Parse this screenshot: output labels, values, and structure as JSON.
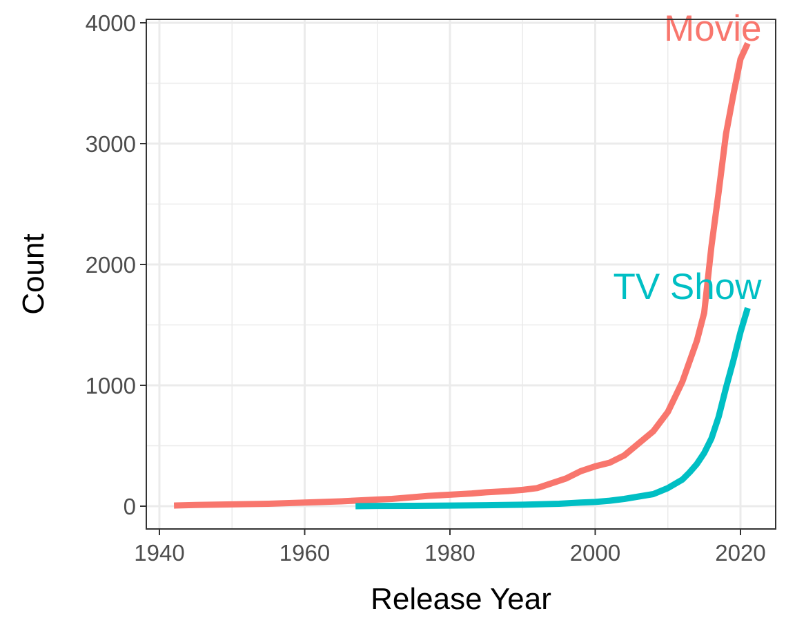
{
  "chart_data": {
    "type": "line",
    "xlabel": "Release Year",
    "ylabel": "Count",
    "xlim": [
      1940,
      2021
    ],
    "ylim": [
      0,
      4000
    ],
    "xticks": [
      1940,
      1960,
      1980,
      2000,
      2020
    ],
    "yticks": [
      0,
      1000,
      2000,
      3000,
      4000
    ],
    "grid": true,
    "legend": "none (direct labels at line ends)",
    "series": [
      {
        "name": "Movie",
        "color": "#F8766D",
        "x": [
          1942,
          1945,
          1950,
          1955,
          1960,
          1965,
          1970,
          1972,
          1975,
          1977,
          1980,
          1983,
          1985,
          1988,
          1990,
          1992,
          1994,
          1996,
          1998,
          2000,
          2002,
          2004,
          2006,
          2008,
          2010,
          2012,
          2014,
          2015,
          2016,
          2017,
          2018,
          2019,
          2020,
          2021
        ],
        "y": [
          5,
          10,
          15,
          20,
          30,
          40,
          55,
          60,
          75,
          85,
          95,
          105,
          115,
          125,
          135,
          150,
          190,
          230,
          290,
          330,
          360,
          420,
          520,
          620,
          780,
          1030,
          1370,
          1600,
          2150,
          2600,
          3080,
          3400,
          3700,
          3830
        ]
      },
      {
        "name": "TV Show",
        "color": "#00BFC4",
        "x": [
          1967,
          1970,
          1975,
          1980,
          1985,
          1990,
          1995,
          1998,
          2000,
          2002,
          2004,
          2006,
          2008,
          2010,
          2012,
          2013,
          2014,
          2015,
          2016,
          2017,
          2018,
          2019,
          2020,
          2021
        ],
        "y": [
          0,
          2,
          3,
          5,
          8,
          12,
          20,
          30,
          35,
          45,
          60,
          80,
          100,
          150,
          220,
          280,
          350,
          440,
          560,
          740,
          980,
          1200,
          1440,
          1640
        ]
      }
    ]
  }
}
